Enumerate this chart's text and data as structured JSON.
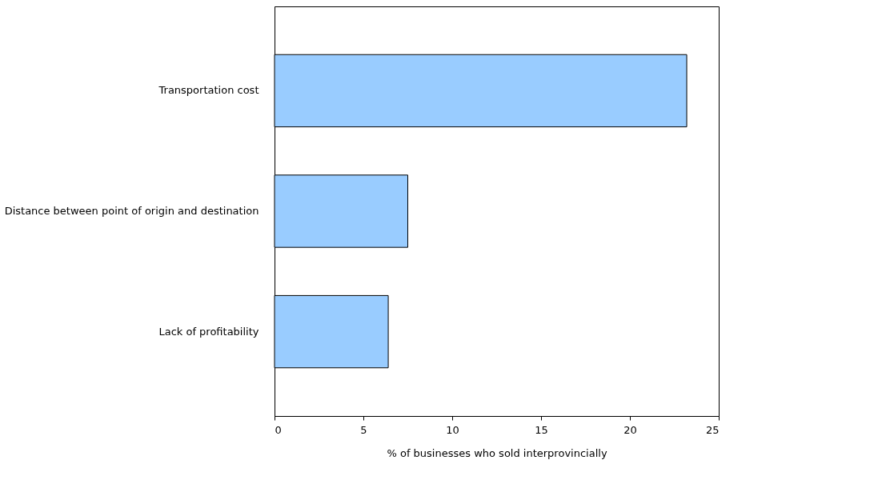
{
  "chart_data": {
    "type": "bar",
    "orientation": "horizontal",
    "xlabel": "% of businesses who sold interprovincially",
    "categories": [
      "Transportation cost",
      "Distance between point of origin and destination",
      "Lack of profitability"
    ],
    "values": [
      23.2,
      7.5,
      6.4
    ],
    "color": "#99ccff",
    "xlim": [
      0,
      25
    ],
    "xticks": [
      0,
      5,
      10,
      15,
      20,
      25
    ],
    "grid": false
  }
}
